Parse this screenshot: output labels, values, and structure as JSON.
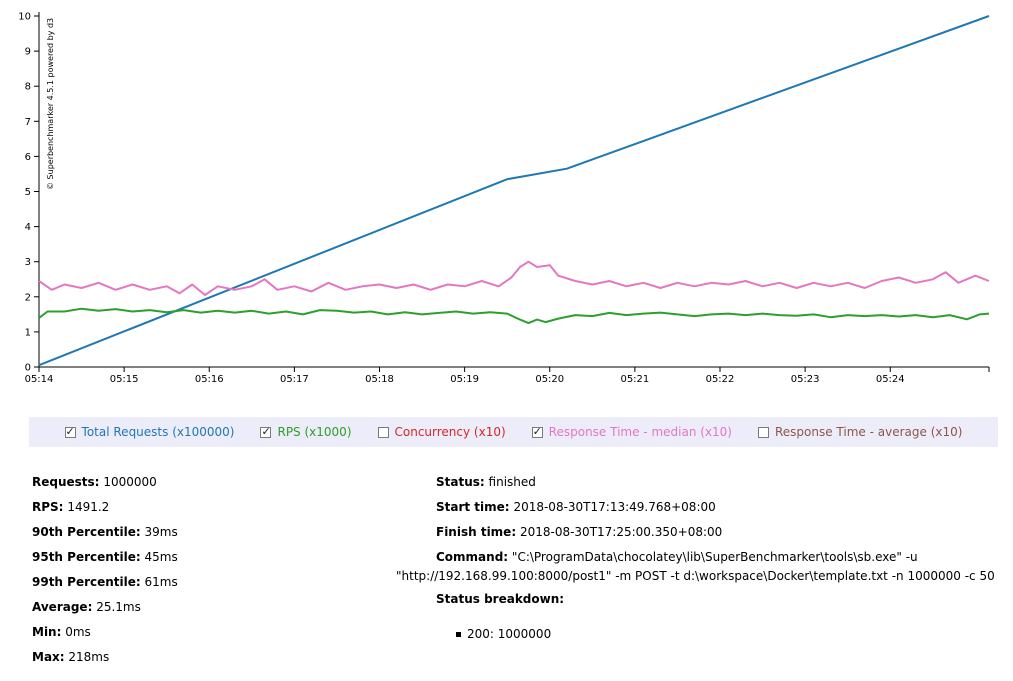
{
  "chart_data": {
    "type": "line",
    "watermark": "© Superbenchmarker 4.5.1 powered by d3",
    "x_ticks": [
      "05:14",
      "05:15",
      "05:16",
      "05:17",
      "05:18",
      "05:19",
      "05:20",
      "05:21",
      "05:22",
      "05:23",
      "05:24"
    ],
    "y_ticks": [
      "0",
      "1",
      "2",
      "3",
      "4",
      "5",
      "6",
      "7",
      "8",
      "9",
      "10"
    ],
    "ylim": [
      0,
      10
    ],
    "x_range_minutes": [
      0,
      11.16
    ],
    "grid": false,
    "series": [
      {
        "name": "Total Requests (x100000)",
        "color": "#1f77b4",
        "points": [
          [
            0,
            0.05
          ],
          [
            5.5,
            5.35
          ],
          [
            6.2,
            5.65
          ],
          [
            11.16,
            10.0
          ]
        ]
      },
      {
        "name": "RPS (x1000)",
        "color": "#2ca02c",
        "points": [
          [
            0,
            1.4
          ],
          [
            0.1,
            1.58
          ],
          [
            0.3,
            1.58
          ],
          [
            0.5,
            1.66
          ],
          [
            0.7,
            1.6
          ],
          [
            0.9,
            1.65
          ],
          [
            1.1,
            1.58
          ],
          [
            1.3,
            1.62
          ],
          [
            1.5,
            1.56
          ],
          [
            1.7,
            1.62
          ],
          [
            1.9,
            1.55
          ],
          [
            2.1,
            1.6
          ],
          [
            2.3,
            1.55
          ],
          [
            2.5,
            1.6
          ],
          [
            2.7,
            1.52
          ],
          [
            2.9,
            1.58
          ],
          [
            3.1,
            1.5
          ],
          [
            3.3,
            1.62
          ],
          [
            3.5,
            1.6
          ],
          [
            3.7,
            1.55
          ],
          [
            3.9,
            1.58
          ],
          [
            4.1,
            1.5
          ],
          [
            4.3,
            1.56
          ],
          [
            4.5,
            1.5
          ],
          [
            4.7,
            1.54
          ],
          [
            4.9,
            1.58
          ],
          [
            5.1,
            1.52
          ],
          [
            5.3,
            1.56
          ],
          [
            5.5,
            1.52
          ],
          [
            5.65,
            1.35
          ],
          [
            5.75,
            1.25
          ],
          [
            5.85,
            1.35
          ],
          [
            5.95,
            1.28
          ],
          [
            6.1,
            1.38
          ],
          [
            6.3,
            1.48
          ],
          [
            6.5,
            1.45
          ],
          [
            6.7,
            1.54
          ],
          [
            6.9,
            1.48
          ],
          [
            7.1,
            1.52
          ],
          [
            7.3,
            1.55
          ],
          [
            7.5,
            1.5
          ],
          [
            7.7,
            1.45
          ],
          [
            7.9,
            1.5
          ],
          [
            8.1,
            1.52
          ],
          [
            8.3,
            1.48
          ],
          [
            8.5,
            1.52
          ],
          [
            8.7,
            1.48
          ],
          [
            8.9,
            1.46
          ],
          [
            9.1,
            1.5
          ],
          [
            9.3,
            1.42
          ],
          [
            9.5,
            1.48
          ],
          [
            9.7,
            1.45
          ],
          [
            9.9,
            1.48
          ],
          [
            10.1,
            1.44
          ],
          [
            10.3,
            1.48
          ],
          [
            10.5,
            1.42
          ],
          [
            10.7,
            1.48
          ],
          [
            10.9,
            1.36
          ],
          [
            11.05,
            1.5
          ],
          [
            11.16,
            1.52
          ]
        ]
      },
      {
        "name": "Response Time - median (x10)",
        "color": "#e377c2",
        "points": [
          [
            0,
            2.45
          ],
          [
            0.15,
            2.2
          ],
          [
            0.3,
            2.35
          ],
          [
            0.5,
            2.25
          ],
          [
            0.7,
            2.4
          ],
          [
            0.9,
            2.2
          ],
          [
            1.1,
            2.35
          ],
          [
            1.3,
            2.2
          ],
          [
            1.5,
            2.3
          ],
          [
            1.65,
            2.1
          ],
          [
            1.8,
            2.35
          ],
          [
            1.95,
            2.05
          ],
          [
            2.1,
            2.3
          ],
          [
            2.3,
            2.2
          ],
          [
            2.5,
            2.3
          ],
          [
            2.65,
            2.5
          ],
          [
            2.8,
            2.2
          ],
          [
            3.0,
            2.3
          ],
          [
            3.2,
            2.15
          ],
          [
            3.4,
            2.4
          ],
          [
            3.6,
            2.2
          ],
          [
            3.8,
            2.3
          ],
          [
            4.0,
            2.35
          ],
          [
            4.2,
            2.25
          ],
          [
            4.4,
            2.35
          ],
          [
            4.6,
            2.2
          ],
          [
            4.8,
            2.35
          ],
          [
            5.0,
            2.3
          ],
          [
            5.2,
            2.45
          ],
          [
            5.4,
            2.3
          ],
          [
            5.55,
            2.55
          ],
          [
            5.65,
            2.85
          ],
          [
            5.75,
            3.0
          ],
          [
            5.85,
            2.85
          ],
          [
            6.0,
            2.9
          ],
          [
            6.1,
            2.6
          ],
          [
            6.3,
            2.45
          ],
          [
            6.5,
            2.35
          ],
          [
            6.7,
            2.45
          ],
          [
            6.9,
            2.3
          ],
          [
            7.1,
            2.4
          ],
          [
            7.3,
            2.25
          ],
          [
            7.5,
            2.4
          ],
          [
            7.7,
            2.3
          ],
          [
            7.9,
            2.4
          ],
          [
            8.1,
            2.35
          ],
          [
            8.3,
            2.45
          ],
          [
            8.5,
            2.3
          ],
          [
            8.7,
            2.4
          ],
          [
            8.9,
            2.25
          ],
          [
            9.1,
            2.4
          ],
          [
            9.3,
            2.3
          ],
          [
            9.5,
            2.4
          ],
          [
            9.7,
            2.25
          ],
          [
            9.9,
            2.45
          ],
          [
            10.1,
            2.55
          ],
          [
            10.3,
            2.4
          ],
          [
            10.5,
            2.5
          ],
          [
            10.65,
            2.7
          ],
          [
            10.8,
            2.4
          ],
          [
            11.0,
            2.6
          ],
          [
            11.16,
            2.45
          ]
        ]
      }
    ]
  },
  "legend": [
    {
      "label": "Total Requests (x100000)",
      "checked": true,
      "color": "#1f77b4"
    },
    {
      "label": "RPS (x1000)",
      "checked": true,
      "color": "#2ca02c"
    },
    {
      "label": "Concurrency (x10)",
      "checked": false,
      "color": "#d62728"
    },
    {
      "label": "Response Time - median (x10)",
      "checked": true,
      "color": "#e377c2"
    },
    {
      "label": "Response Time - average (x10)",
      "checked": false,
      "color": "#8c564b"
    }
  ],
  "stats_left": [
    {
      "label": "Requests:",
      "value": "1000000"
    },
    {
      "label": "RPS:",
      "value": "1491.2"
    },
    {
      "label": "90th Percentile:",
      "value": "39ms"
    },
    {
      "label": "95th Percentile:",
      "value": "45ms"
    },
    {
      "label": "99th Percentile:",
      "value": "61ms"
    },
    {
      "label": "Average:",
      "value": "25.1ms"
    },
    {
      "label": "Min:",
      "value": "0ms"
    },
    {
      "label": "Max:",
      "value": "218ms"
    }
  ],
  "stats_right": {
    "status_label": "Status:",
    "status_value": "finished",
    "start_label": "Start time:",
    "start_value": "2018-08-30T17:13:49.768+08:00",
    "finish_label": "Finish time:",
    "finish_value": "2018-08-30T17:25:00.350+08:00",
    "command_label": "Command:",
    "command_line1": "\"C:\\ProgramData\\chocolatey\\lib\\SuperBenchmarker\\tools\\sb.exe\" -u",
    "command_line2": "\"http://192.168.99.100:8000/post1\" -m POST -t d:\\workspace\\Docker\\template.txt -n 1000000 -c 50",
    "breakdown_label": "Status breakdown:",
    "breakdown_items": [
      "200: 1000000"
    ]
  }
}
